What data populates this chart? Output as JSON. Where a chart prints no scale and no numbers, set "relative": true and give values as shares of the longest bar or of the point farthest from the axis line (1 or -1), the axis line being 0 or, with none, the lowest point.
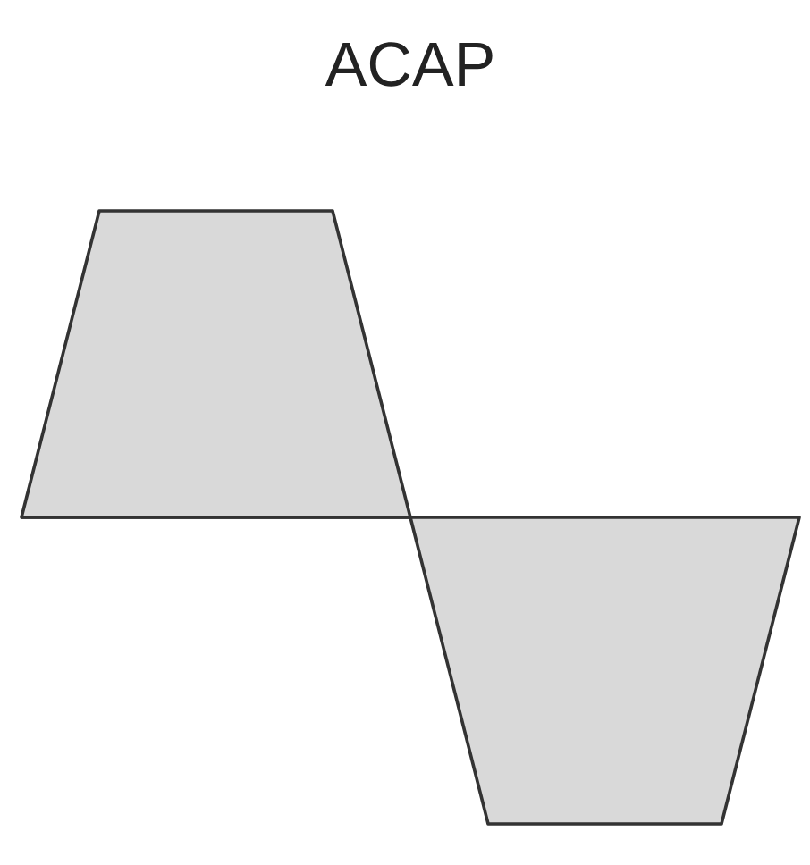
{
  "chart_data": {
    "type": "area",
    "title": "ACAP",
    "relative": true,
    "categories": [
      null,
      null,
      null,
      null,
      null,
      null,
      null,
      null,
      null,
      null,
      null
    ],
    "values": [
      0,
      1,
      1,
      1,
      1,
      0,
      -1,
      -1,
      -1,
      -1,
      0
    ],
    "color": "#d9d9d9"
  }
}
